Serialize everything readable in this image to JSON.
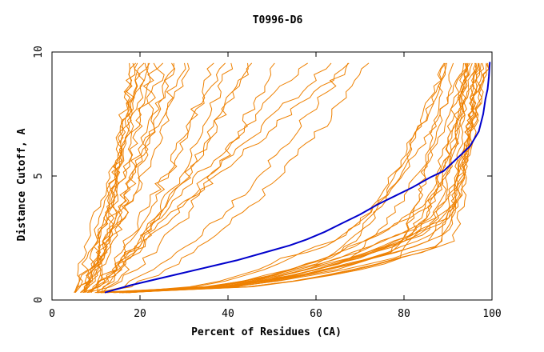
{
  "chart_data": {
    "type": "line",
    "title": "T0996-D6",
    "xlabel": "Percent of Residues (CA)",
    "ylabel": "Distance Cutoff, A",
    "xlim": [
      0,
      100
    ],
    "ylim": [
      0,
      10
    ],
    "x_ticks": [
      "0",
      "20",
      "40",
      "60",
      "80",
      "100"
    ],
    "y_ticks": [
      "0",
      "5",
      "10"
    ],
    "grid": false,
    "legend": "none",
    "colors": {
      "highlight": "#0000cc",
      "models": "#ee8000",
      "axes": "#000000"
    },
    "highlight_series": {
      "x": [
        12,
        18,
        24,
        30,
        36,
        42,
        48,
        54,
        58,
        62,
        66,
        70,
        74,
        78,
        82,
        86,
        89,
        92,
        95,
        97,
        98,
        98.5,
        99,
        99.3,
        99.5
      ],
      "y": [
        0.3,
        0.6,
        0.85,
        1.1,
        1.35,
        1.6,
        1.9,
        2.2,
        2.45,
        2.75,
        3.1,
        3.45,
        3.85,
        4.2,
        4.55,
        4.95,
        5.2,
        5.7,
        6.2,
        6.8,
        7.5,
        8.1,
        8.5,
        9.0,
        9.6
      ]
    },
    "model_groups": [
      {
        "group": "steep-left",
        "count": 14,
        "x_start": [
          5,
          9
        ],
        "x_end": [
          17,
          32
        ]
      },
      {
        "group": "middle",
        "count": 11,
        "x_start": [
          7,
          12
        ],
        "x_end": [
          35,
          78
        ]
      },
      {
        "group": "right-upper",
        "count": 10,
        "x_start": [
          10,
          16
        ],
        "x_end": [
          88,
          97
        ]
      },
      {
        "group": "right-lower",
        "count": 14,
        "x_start": [
          11,
          18
        ],
        "x_end": [
          93,
          100
        ]
      }
    ]
  }
}
